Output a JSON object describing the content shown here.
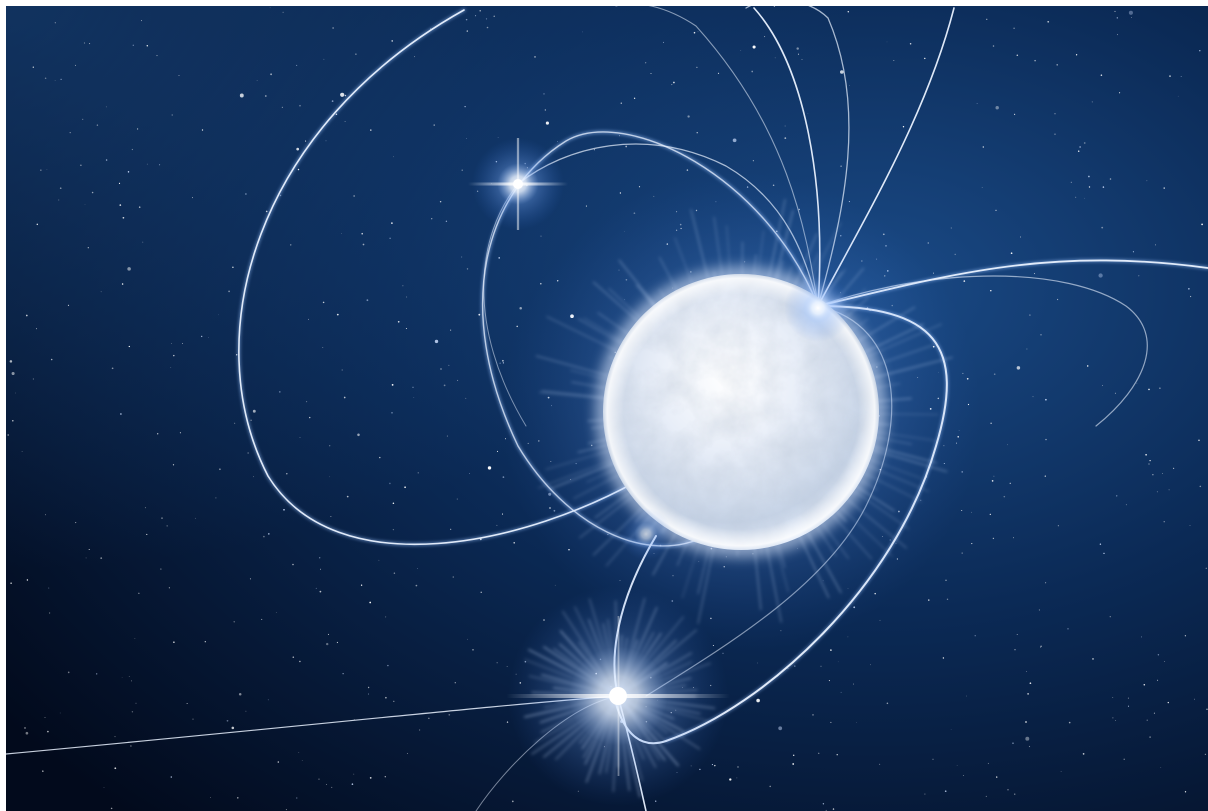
{
  "image": {
    "colors": {
      "space_deep": "#020a1c",
      "space_mid": "#0b2a56",
      "space_light": "#1a4a86",
      "star_core": "#f4f8ff",
      "star_glow": "#9cc4ff",
      "field_line": "#e6f0ff",
      "surface_shadow": "#b7c7dc"
    },
    "objects": [
      {
        "kind": "magnetar",
        "icon": "neutron-star"
      },
      {
        "kind": "companion-star",
        "icon": "bright-star"
      },
      {
        "kind": "companion-star",
        "icon": "bright-star"
      },
      {
        "kind": "magnetic-field-lines",
        "icon": "field-lines"
      },
      {
        "kind": "starfield",
        "icon": "background-stars"
      }
    ]
  }
}
